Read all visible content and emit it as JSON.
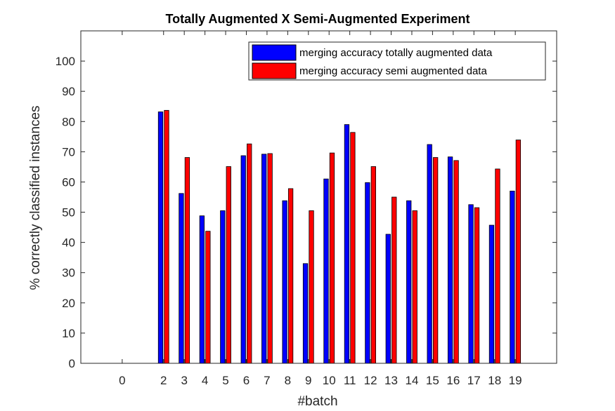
{
  "chart_data": {
    "type": "bar",
    "title": "Totally Augmented X Semi-Augmented Experiment",
    "xlabel": "#batch",
    "ylabel": "% correctly classified instances",
    "categories": [
      "2",
      "3",
      "4",
      "5",
      "6",
      "7",
      "8",
      "9",
      "10",
      "11",
      "12",
      "13",
      "14",
      "15",
      "16",
      "17",
      "18",
      "19"
    ],
    "x_ticks": [
      "0",
      "2",
      "3",
      "4",
      "5",
      "6",
      "7",
      "8",
      "9",
      "10",
      "11",
      "12",
      "13",
      "14",
      "15",
      "16",
      "17",
      "18",
      "19"
    ],
    "y_ticks": [
      "0",
      "10",
      "20",
      "30",
      "40",
      "50",
      "60",
      "70",
      "80",
      "90",
      "100"
    ],
    "xlim": [
      -2,
      21
    ],
    "ylim": [
      0,
      100
    ],
    "grid": false,
    "legend_position": "top-right",
    "series": [
      {
        "name": "merging accuracy totally augmented data",
        "color": "#0000FF",
        "values": [
          83.2,
          56.2,
          48.8,
          50.5,
          68.7,
          69.2,
          53.8,
          33.0,
          61.0,
          79.0,
          59.8,
          42.7,
          53.8,
          72.4,
          68.3,
          52.5,
          45.7,
          57.0
        ]
      },
      {
        "name": "merging accuracy semi augmented data",
        "color": "#FF0000",
        "values": [
          83.7,
          68.1,
          43.7,
          65.1,
          72.6,
          69.4,
          57.8,
          50.5,
          69.6,
          76.4,
          65.1,
          55.0,
          50.5,
          68.1,
          67.1,
          51.5,
          64.3,
          73.9
        ]
      }
    ]
  }
}
